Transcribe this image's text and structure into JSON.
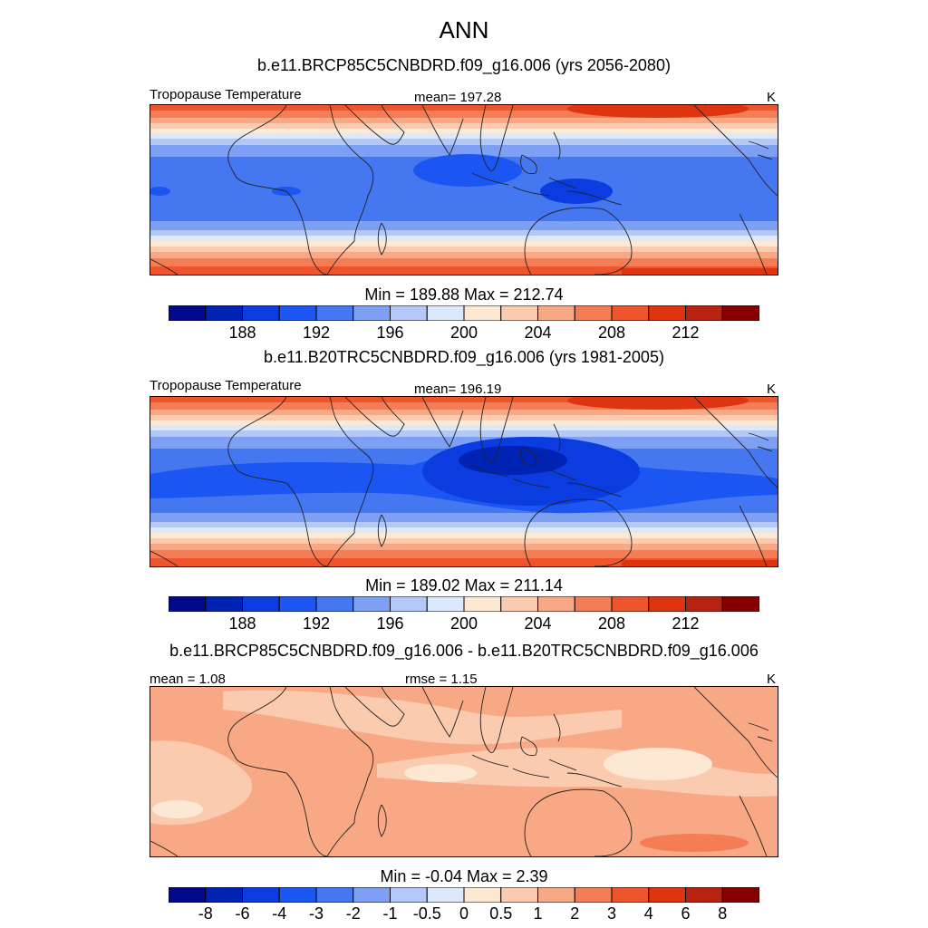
{
  "page": {
    "title": "ANN"
  },
  "panels": [
    {
      "subtitle": "b.e11.BRCP85C5CNBDRD.f09_g16.006 (yrs 2056-2080)",
      "left_label": "Tropopause Temperature",
      "center_label": "mean= 197.28",
      "units": "K",
      "minmax": "Min = 189.88 Max = 212.74"
    },
    {
      "subtitle": "b.e11.B20TRC5CNBDRD.f09_g16.006 (yrs 1981-2005)",
      "left_label": "Tropopause Temperature",
      "center_label": "mean= 196.19",
      "units": "K",
      "minmax": "Min = 189.02 Max = 211.14"
    },
    {
      "subtitle": "b.e11.BRCP85C5CNBDRD.f09_g16.006 - b.e11.B20TRC5CNBDRD.f09_g16.006",
      "left_label": "mean =   1.08",
      "center_label": "rmse =   1.15",
      "units": "K",
      "minmax": "Min =  -0.04 Max =   2.39"
    }
  ],
  "chart_data": [
    {
      "type": "heatmap",
      "title": "ANN",
      "subtitle": "b.e11.BRCP85C5CNBDRD.f09_g16.006 (yrs 2056-2080)",
      "variable": "Tropopause Temperature",
      "units": "K",
      "mean": 197.28,
      "min": 189.88,
      "max": 212.74,
      "contour_levels": [
        186,
        187,
        188,
        189,
        190,
        191,
        192,
        193,
        194,
        195,
        196,
        197,
        198,
        199,
        200,
        201,
        202,
        203,
        204,
        205,
        206,
        207,
        208,
        209,
        210,
        211,
        212,
        213,
        214,
        215
      ],
      "colorbar_ticks": [
        "188",
        "192",
        "196",
        "200",
        "204",
        "208",
        "212"
      ],
      "colorbar_colors": [
        "#000a8a",
        "#0023b4",
        "#0a3ce0",
        "#1c56f2",
        "#4477f0",
        "#7da0f4",
        "#b3c8f6",
        "#dce8fb",
        "#fde8d4",
        "#fbcbb0",
        "#f8a884",
        "#f57d55",
        "#ef552c",
        "#de3410",
        "#b72310",
        "#860000"
      ]
    },
    {
      "type": "heatmap",
      "subtitle": "b.e11.B20TRC5CNBDRD.f09_g16.006 (yrs 1981-2005)",
      "variable": "Tropopause Temperature",
      "units": "K",
      "mean": 196.19,
      "min": 189.02,
      "max": 211.14,
      "colorbar_ticks": [
        "188",
        "192",
        "196",
        "200",
        "204",
        "208",
        "212"
      ],
      "colorbar_colors": [
        "#000a8a",
        "#0023b4",
        "#0a3ce0",
        "#1c56f2",
        "#4477f0",
        "#7da0f4",
        "#b3c8f6",
        "#dce8fb",
        "#fde8d4",
        "#fbcbb0",
        "#f8a884",
        "#f57d55",
        "#ef552c",
        "#de3410",
        "#b72310",
        "#860000"
      ]
    },
    {
      "type": "heatmap",
      "subtitle": "b.e11.BRCP85C5CNBDRD.f09_g16.006 - b.e11.B20TRC5CNBDRD.f09_g16.006",
      "units": "K",
      "mean": 1.08,
      "rmse": 1.15,
      "min": -0.04,
      "max": 2.39,
      "colorbar_ticks": [
        "-8",
        "-6",
        "-4",
        "-3",
        "-2",
        "-1",
        "-0.5",
        "0",
        "0.5",
        "1",
        "2",
        "3",
        "4",
        "6",
        "8"
      ],
      "colorbar_colors": [
        "#000a8a",
        "#0023b4",
        "#0a3ce0",
        "#1c56f2",
        "#4477f0",
        "#7da0f4",
        "#b3c8f6",
        "#dce8fb",
        "#fde8d4",
        "#fbcbb0",
        "#f8a884",
        "#f57d55",
        "#ef552c",
        "#de3410",
        "#b72310",
        "#860000"
      ]
    }
  ]
}
